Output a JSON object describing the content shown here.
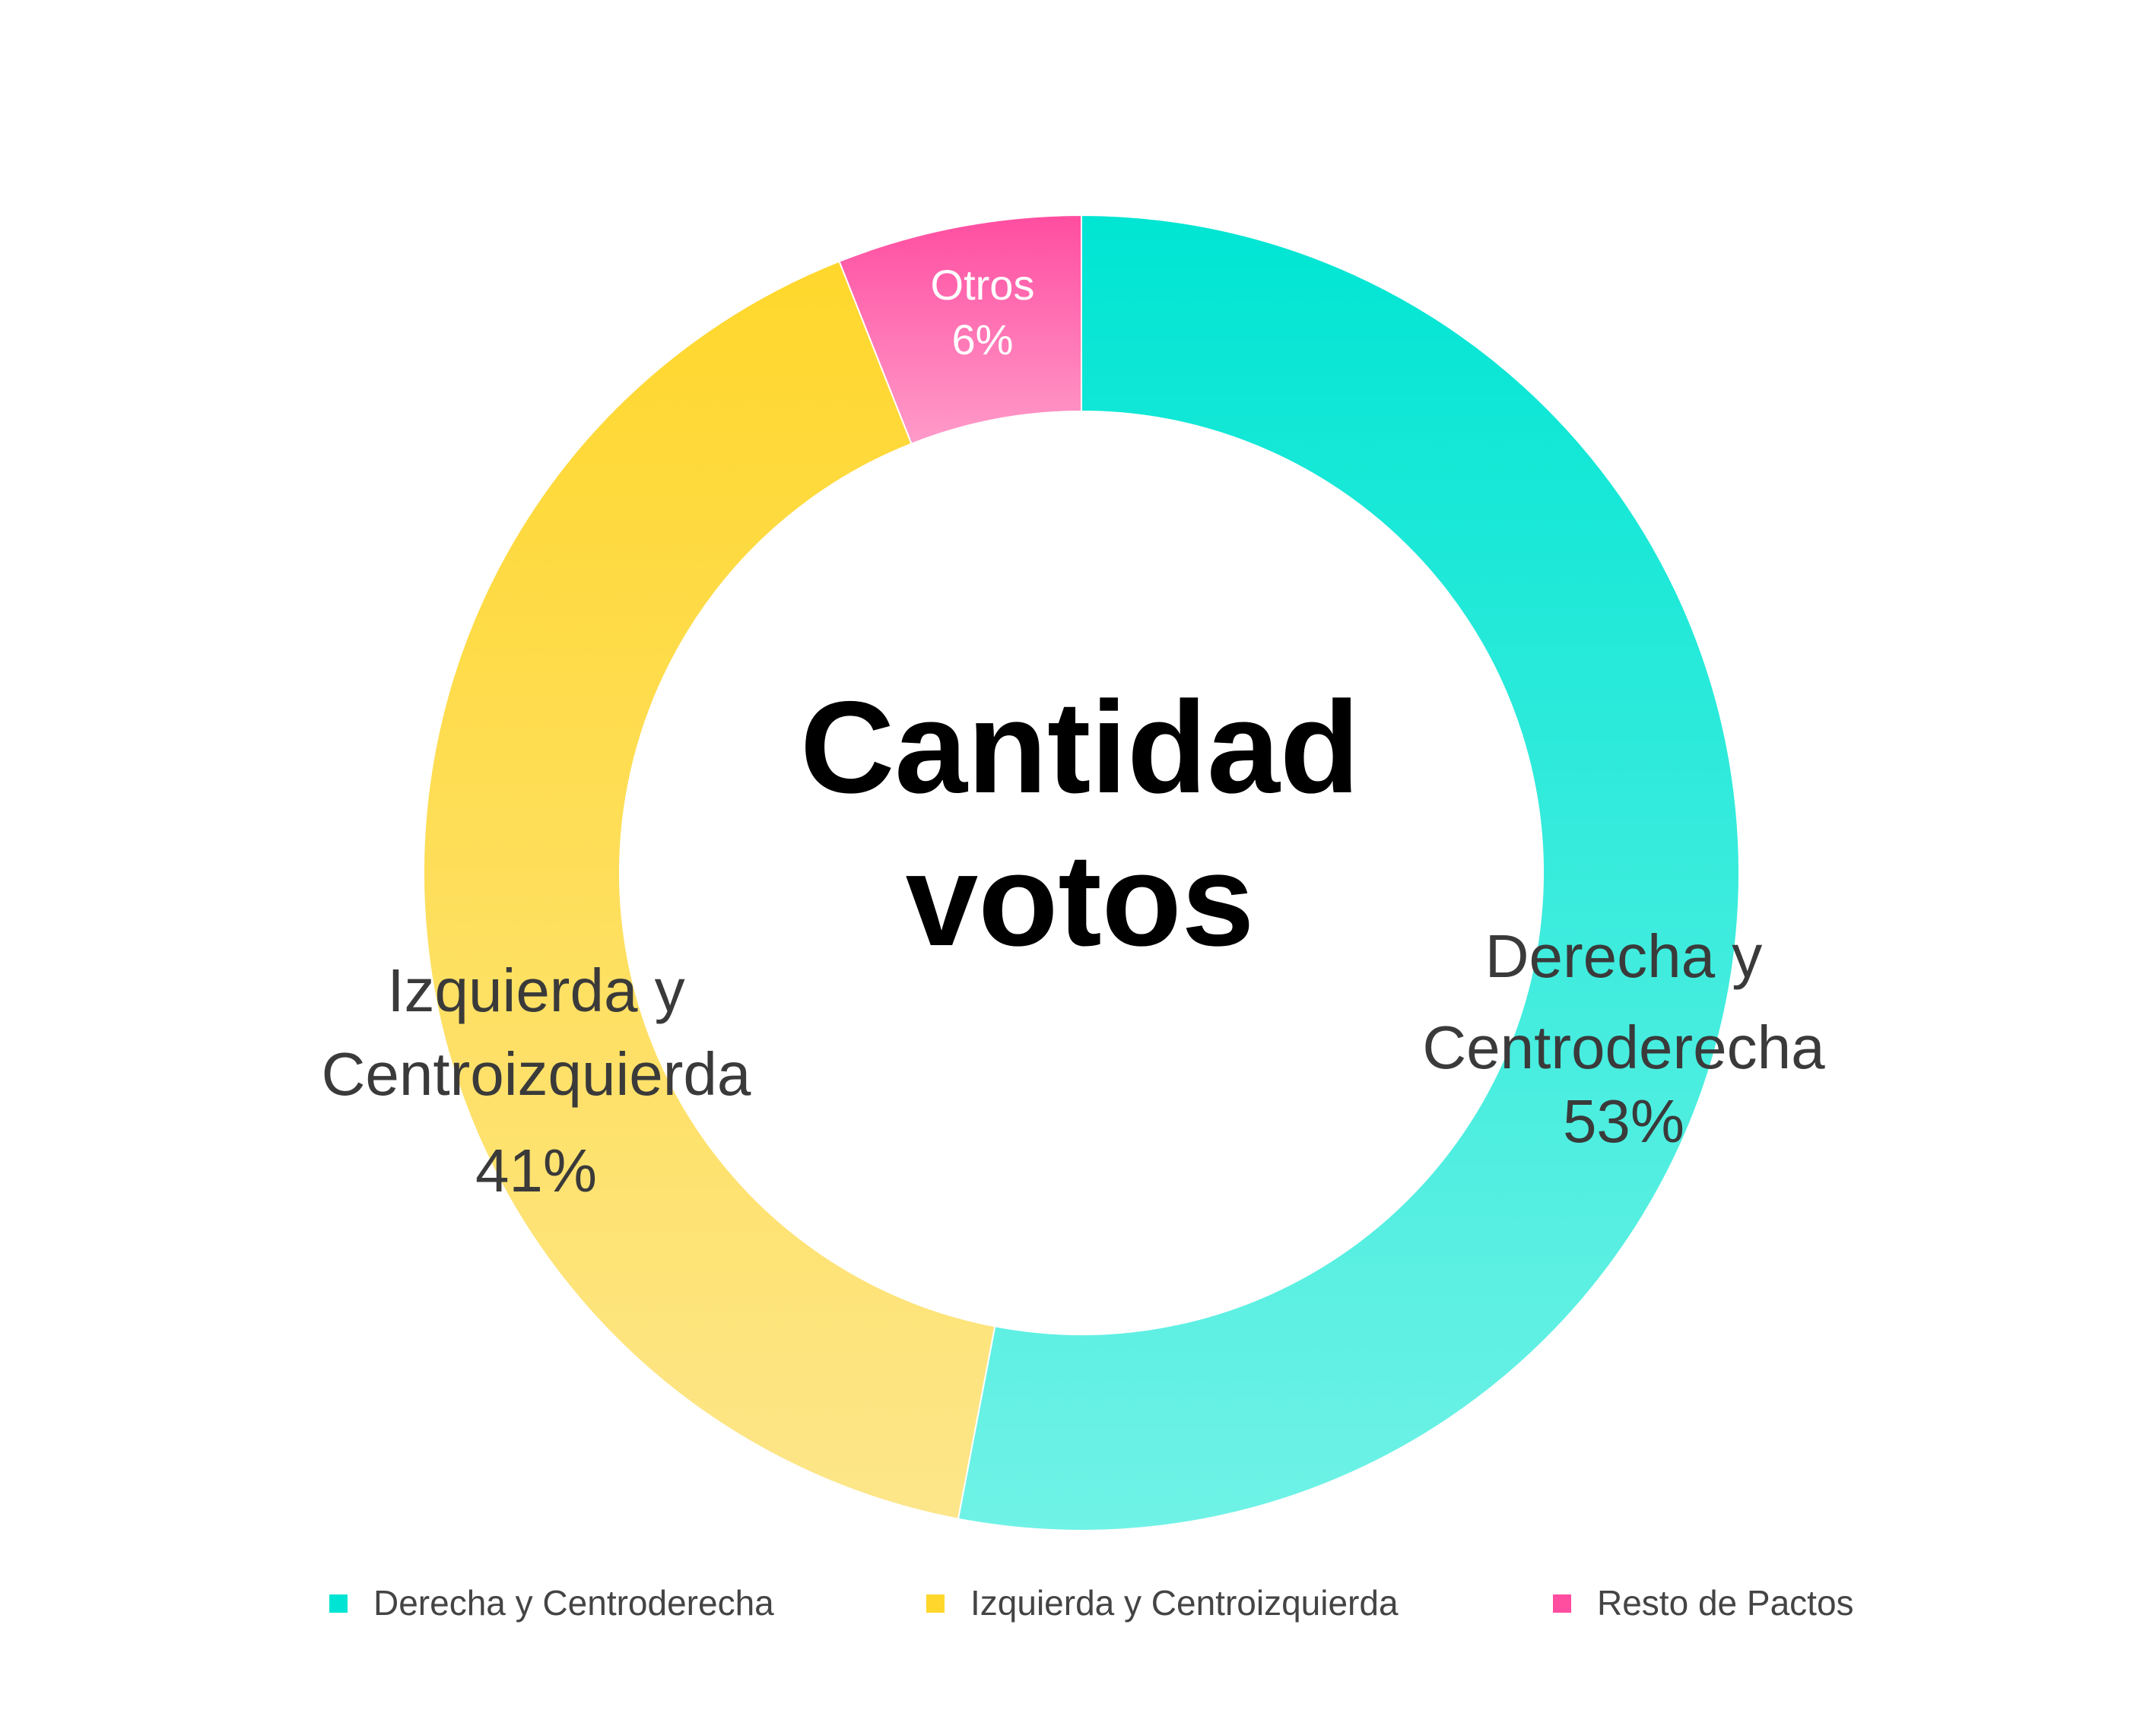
{
  "chart_data": {
    "type": "pie",
    "donut": true,
    "center_title_lines": [
      "Cantidad",
      "votos"
    ],
    "series": [
      {
        "name": "Derecha y Centroderecha",
        "value": 53,
        "percent_label": "53%",
        "label_lines": [
          "Derecha y",
          "Centroderecha"
        ],
        "color_top": "#00E5D3",
        "color_bottom": "#70F2E6"
      },
      {
        "name": "Izquierda y Centroizquierda",
        "value": 41,
        "percent_label": "41%",
        "label_lines": [
          "Izquierda y",
          "Centroizquierda"
        ],
        "color_top": "#FFD72C",
        "color_bottom": "#FDE68A"
      },
      {
        "name": "Resto de Pactos",
        "value": 6,
        "percent_label": "6%",
        "label_lines": [
          "Otros"
        ],
        "color_top": "#FF4DA0",
        "color_bottom": "#FF9BC9"
      }
    ],
    "label_color_dark": "#3A3A3A",
    "label_color_light": "#FFFFFF",
    "legend": {
      "placement": "bottom",
      "items": [
        "Derecha y Centroderecha",
        "Izquierda y Centroizquierda",
        "Resto de Pactos"
      ]
    }
  }
}
